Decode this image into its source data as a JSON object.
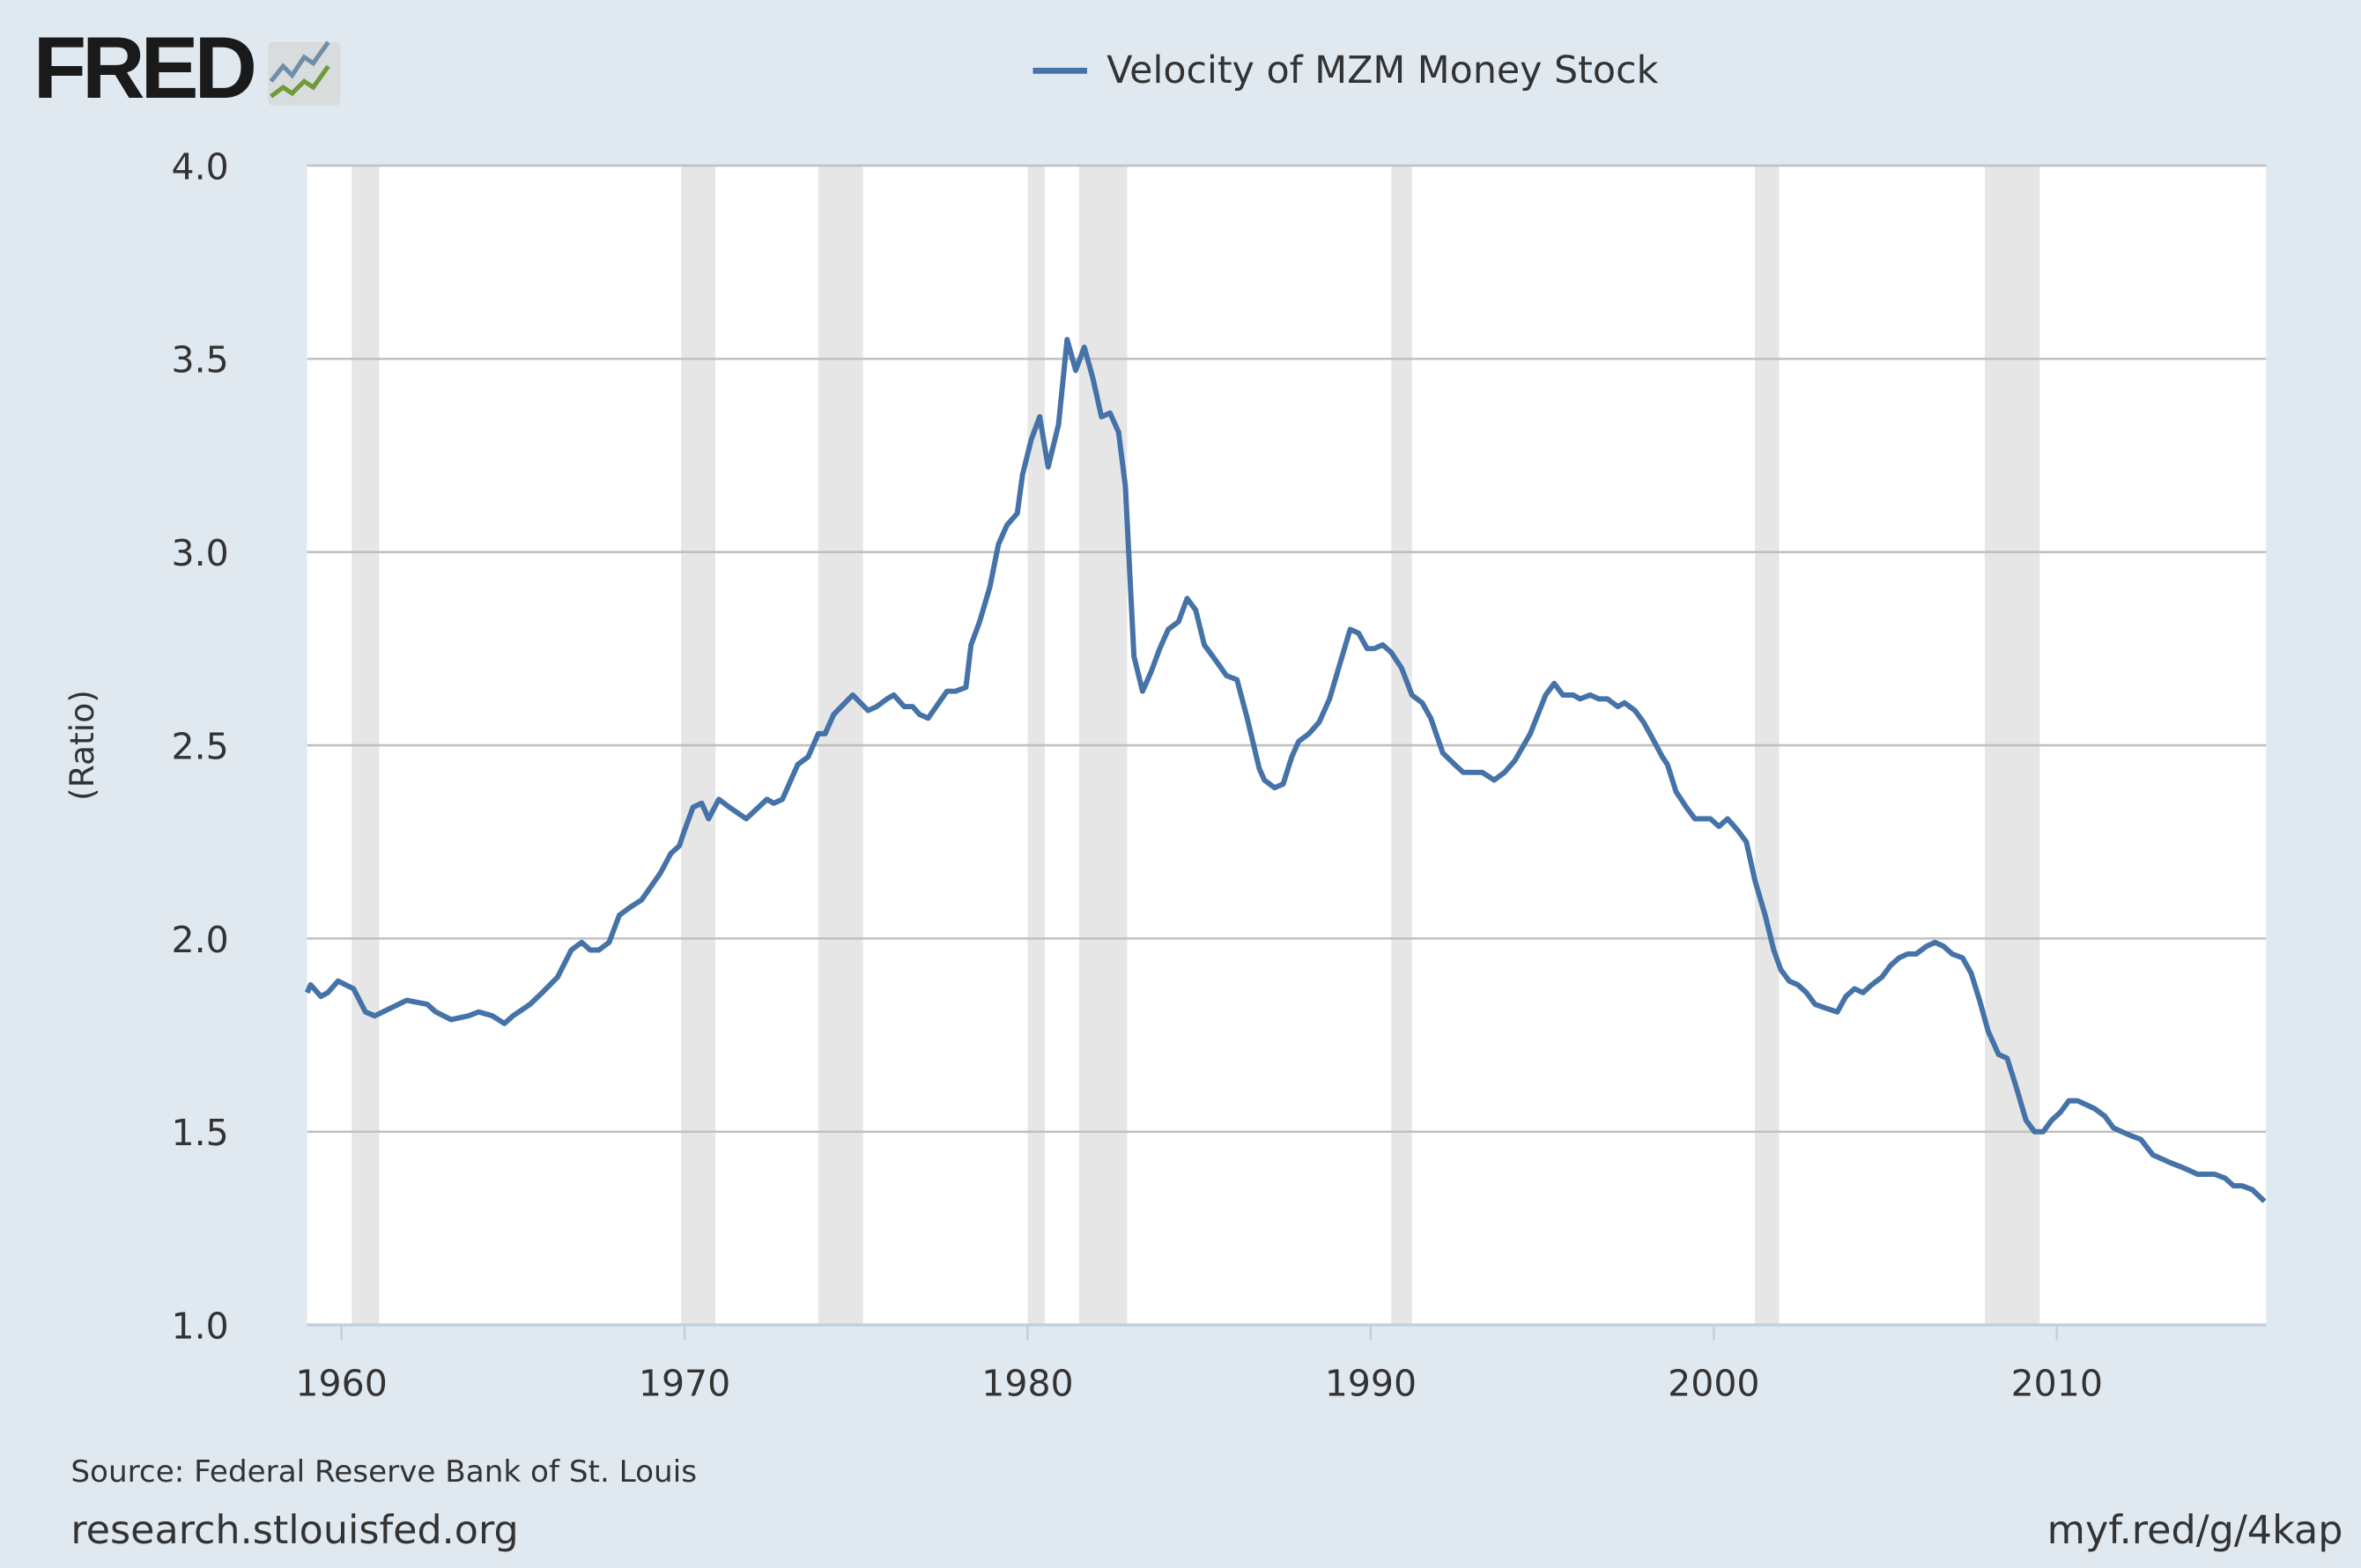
{
  "logo": {
    "text": "FRED"
  },
  "colors": {
    "background": "#e1e9f0",
    "series": "#4572a7",
    "recession": "#e6e6e6",
    "grid": "#c0c0c0",
    "plot_bg": "#ffffff"
  },
  "footer": {
    "source": "Source: Federal Reserve Bank of St. Louis",
    "site": "research.stlouisfed.org",
    "short_url": "myf.red/g/4kap"
  },
  "chart_data": {
    "type": "line",
    "title": "",
    "xlabel": "",
    "ylabel": "(Ratio)",
    "xlim": [
      1959.0,
      2016.1
    ],
    "ylim": [
      1.0,
      4.0
    ],
    "xticks": [
      1960,
      1970,
      1980,
      1990,
      2000,
      2010
    ],
    "yticks": [
      "1.0",
      "1.5",
      "2.0",
      "2.5",
      "3.0",
      "3.5",
      "4.0"
    ],
    "grid": "horizontal",
    "legend": "top-center",
    "recessions": [
      [
        1960.3,
        1961.1
      ],
      [
        1969.9,
        1970.9
      ],
      [
        1973.9,
        1975.2
      ],
      [
        1980.0,
        1980.5
      ],
      [
        1981.5,
        1982.9
      ],
      [
        1990.6,
        1991.2
      ],
      [
        2001.2,
        2001.9
      ],
      [
        2007.9,
        2009.5
      ]
    ],
    "series": [
      {
        "name": "Velocity of MZM Money Stock",
        "points": [
          [
            1959.0,
            1.86
          ],
          [
            1959.1,
            1.88
          ],
          [
            1959.4,
            1.85
          ],
          [
            1959.6,
            1.86
          ],
          [
            1959.9,
            1.89
          ],
          [
            1960.35,
            1.87
          ],
          [
            1960.7,
            1.81
          ],
          [
            1960.97,
            1.8
          ],
          [
            1961.9,
            1.84
          ],
          [
            1962.5,
            1.83
          ],
          [
            1962.75,
            1.81
          ],
          [
            1963.2,
            1.79
          ],
          [
            1963.7,
            1.8
          ],
          [
            1964.0,
            1.81
          ],
          [
            1964.4,
            1.8
          ],
          [
            1964.75,
            1.78
          ],
          [
            1965.0,
            1.8
          ],
          [
            1965.5,
            1.83
          ],
          [
            1965.85,
            1.86
          ],
          [
            1966.3,
            1.9
          ],
          [
            1966.7,
            1.97
          ],
          [
            1967.0,
            1.99
          ],
          [
            1967.25,
            1.97
          ],
          [
            1967.5,
            1.97
          ],
          [
            1967.8,
            1.99
          ],
          [
            1968.1,
            2.06
          ],
          [
            1968.4,
            2.08
          ],
          [
            1968.75,
            2.1
          ],
          [
            1969.3,
            2.17
          ],
          [
            1969.6,
            2.22
          ],
          [
            1969.85,
            2.24
          ],
          [
            1970.0,
            2.28
          ],
          [
            1970.25,
            2.34
          ],
          [
            1970.5,
            2.35
          ],
          [
            1970.7,
            2.31
          ],
          [
            1971.0,
            2.36
          ],
          [
            1971.3,
            2.34
          ],
          [
            1971.8,
            2.31
          ],
          [
            1972.4,
            2.36
          ],
          [
            1972.6,
            2.35
          ],
          [
            1972.85,
            2.36
          ],
          [
            1973.3,
            2.45
          ],
          [
            1973.6,
            2.47
          ],
          [
            1973.9,
            2.53
          ],
          [
            1974.1,
            2.53
          ],
          [
            1974.35,
            2.58
          ],
          [
            1974.9,
            2.63
          ],
          [
            1975.35,
            2.59
          ],
          [
            1975.6,
            2.6
          ],
          [
            1975.9,
            2.62
          ],
          [
            1976.1,
            2.63
          ],
          [
            1976.4,
            2.6
          ],
          [
            1976.65,
            2.6
          ],
          [
            1976.85,
            2.58
          ],
          [
            1977.1,
            2.57
          ],
          [
            1977.65,
            2.64
          ],
          [
            1977.9,
            2.64
          ],
          [
            1978.2,
            2.65
          ],
          [
            1978.35,
            2.76
          ],
          [
            1978.6,
            2.82
          ],
          [
            1978.9,
            2.91
          ],
          [
            1979.15,
            3.02
          ],
          [
            1979.4,
            3.07
          ],
          [
            1979.7,
            3.1
          ],
          [
            1979.85,
            3.2
          ],
          [
            1980.1,
            3.29
          ],
          [
            1980.35,
            3.35
          ],
          [
            1980.6,
            3.22
          ],
          [
            1980.9,
            3.33
          ],
          [
            1981.15,
            3.55
          ],
          [
            1981.4,
            3.47
          ],
          [
            1981.65,
            3.53
          ],
          [
            1981.9,
            3.45
          ],
          [
            1982.15,
            3.35
          ],
          [
            1982.4,
            3.36
          ],
          [
            1982.65,
            3.31
          ],
          [
            1982.85,
            3.17
          ],
          [
            1983.1,
            2.73
          ],
          [
            1983.35,
            2.64
          ],
          [
            1983.6,
            2.69
          ],
          [
            1983.85,
            2.75
          ],
          [
            1984.1,
            2.8
          ],
          [
            1984.4,
            2.82
          ],
          [
            1984.65,
            2.88
          ],
          [
            1984.9,
            2.85
          ],
          [
            1985.15,
            2.76
          ],
          [
            1985.4,
            2.73
          ],
          [
            1985.8,
            2.68
          ],
          [
            1986.1,
            2.67
          ],
          [
            1986.4,
            2.57
          ],
          [
            1986.75,
            2.44
          ],
          [
            1986.9,
            2.41
          ],
          [
            1987.2,
            2.39
          ],
          [
            1987.45,
            2.4
          ],
          [
            1987.7,
            2.47
          ],
          [
            1987.9,
            2.51
          ],
          [
            1988.2,
            2.53
          ],
          [
            1988.5,
            2.56
          ],
          [
            1988.8,
            2.62
          ],
          [
            1989.1,
            2.71
          ],
          [
            1989.4,
            2.8
          ],
          [
            1989.65,
            2.79
          ],
          [
            1989.9,
            2.75
          ],
          [
            1990.1,
            2.75
          ],
          [
            1990.35,
            2.76
          ],
          [
            1990.6,
            2.74
          ],
          [
            1990.9,
            2.7
          ],
          [
            1991.2,
            2.63
          ],
          [
            1991.5,
            2.61
          ],
          [
            1991.75,
            2.57
          ],
          [
            1992.1,
            2.48
          ],
          [
            1992.45,
            2.45
          ],
          [
            1992.7,
            2.43
          ],
          [
            1993.0,
            2.43
          ],
          [
            1993.25,
            2.43
          ],
          [
            1993.6,
            2.41
          ],
          [
            1993.9,
            2.43
          ],
          [
            1994.2,
            2.46
          ],
          [
            1994.65,
            2.53
          ],
          [
            1995.1,
            2.63
          ],
          [
            1995.35,
            2.66
          ],
          [
            1995.6,
            2.63
          ],
          [
            1995.9,
            2.63
          ],
          [
            1996.1,
            2.62
          ],
          [
            1996.4,
            2.63
          ],
          [
            1996.65,
            2.62
          ],
          [
            1996.9,
            2.62
          ],
          [
            1997.2,
            2.6
          ],
          [
            1997.4,
            2.61
          ],
          [
            1997.7,
            2.59
          ],
          [
            1997.95,
            2.56
          ],
          [
            1998.2,
            2.52
          ],
          [
            1998.5,
            2.47
          ],
          [
            1998.65,
            2.45
          ],
          [
            1998.9,
            2.38
          ],
          [
            1999.2,
            2.34
          ],
          [
            1999.45,
            2.31
          ],
          [
            1999.7,
            2.31
          ],
          [
            1999.9,
            2.31
          ],
          [
            2000.15,
            2.29
          ],
          [
            2000.4,
            2.31
          ],
          [
            2000.7,
            2.28
          ],
          [
            2000.95,
            2.25
          ],
          [
            2001.2,
            2.15
          ],
          [
            2001.5,
            2.06
          ],
          [
            2001.75,
            1.97
          ],
          [
            2001.95,
            1.92
          ],
          [
            2002.2,
            1.89
          ],
          [
            2002.45,
            1.88
          ],
          [
            2002.7,
            1.86
          ],
          [
            2002.95,
            1.83
          ],
          [
            2003.25,
            1.82
          ],
          [
            2003.6,
            1.81
          ],
          [
            2003.85,
            1.85
          ],
          [
            2004.1,
            1.87
          ],
          [
            2004.35,
            1.86
          ],
          [
            2004.6,
            1.88
          ],
          [
            2004.9,
            1.9
          ],
          [
            2005.15,
            1.93
          ],
          [
            2005.4,
            1.95
          ],
          [
            2005.65,
            1.96
          ],
          [
            2005.9,
            1.96
          ],
          [
            2006.2,
            1.98
          ],
          [
            2006.45,
            1.99
          ],
          [
            2006.7,
            1.98
          ],
          [
            2006.95,
            1.96
          ],
          [
            2007.25,
            1.95
          ],
          [
            2007.5,
            1.91
          ],
          [
            2007.75,
            1.84
          ],
          [
            2008.0,
            1.76
          ],
          [
            2008.3,
            1.7
          ],
          [
            2008.55,
            1.69
          ],
          [
            2008.8,
            1.62
          ],
          [
            2009.1,
            1.53
          ],
          [
            2009.35,
            1.5
          ],
          [
            2009.6,
            1.5
          ],
          [
            2009.85,
            1.53
          ],
          [
            2010.1,
            1.55
          ],
          [
            2010.35,
            1.58
          ],
          [
            2010.6,
            1.58
          ],
          [
            2010.85,
            1.57
          ],
          [
            2011.1,
            1.56
          ],
          [
            2011.4,
            1.54
          ],
          [
            2011.65,
            1.51
          ],
          [
            2011.9,
            1.5
          ],
          [
            2012.15,
            1.49
          ],
          [
            2012.45,
            1.48
          ],
          [
            2012.8,
            1.44
          ],
          [
            2013.05,
            1.43
          ],
          [
            2013.3,
            1.42
          ],
          [
            2013.6,
            1.41
          ],
          [
            2013.85,
            1.4
          ],
          [
            2014.1,
            1.39
          ],
          [
            2014.35,
            1.39
          ],
          [
            2014.6,
            1.39
          ],
          [
            2014.9,
            1.38
          ],
          [
            2015.15,
            1.36
          ],
          [
            2015.4,
            1.36
          ],
          [
            2015.7,
            1.35
          ],
          [
            2016.05,
            1.32
          ]
        ]
      }
    ]
  }
}
